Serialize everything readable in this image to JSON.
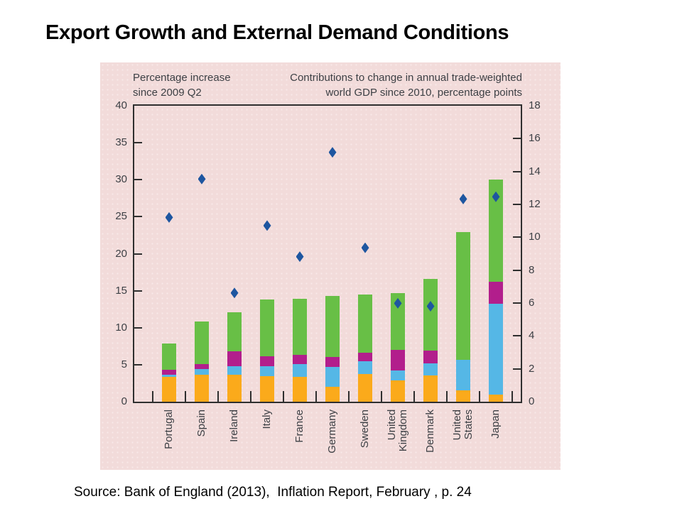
{
  "page": {
    "title": "Export Growth and External Demand Conditions",
    "source_line": "Source: Bank of England (2013),  Inflation Report, February , p. 24"
  },
  "chart_data": {
    "type": "bar",
    "subtype": "stacked-bars-with-diamond-markers",
    "categories": [
      "Portugal",
      "Spain",
      "Ireland",
      "Italy",
      "France",
      "Germany",
      "Sweden",
      "United\nKingdom",
      "Denmark",
      "United\nStates",
      "Japan"
    ],
    "bar_value_axis": "right",
    "series": [
      {
        "name": "segment-orange",
        "color": "#fbaa1b",
        "values": [
          1.5,
          1.65,
          1.65,
          1.55,
          1.5,
          0.9,
          1.7,
          1.3,
          1.6,
          0.7,
          0.45
        ]
      },
      {
        "name": "segment-blue",
        "color": "#55b7e6",
        "values": [
          0.15,
          0.35,
          0.5,
          0.6,
          0.8,
          1.2,
          0.75,
          0.6,
          0.75,
          1.85,
          5.5
        ]
      },
      {
        "name": "segment-magenta",
        "color": "#b21e8c",
        "values": [
          0.3,
          0.3,
          0.9,
          0.6,
          0.55,
          0.6,
          0.55,
          1.25,
          0.75,
          0,
          1.35
        ]
      },
      {
        "name": "segment-green",
        "color": "#68bf46",
        "values": [
          1.6,
          2.6,
          2.4,
          3.45,
          3.4,
          3.75,
          3.5,
          3.45,
          4.35,
          7.75,
          6.2
        ]
      }
    ],
    "markers": {
      "name": "export-growth-diamond",
      "shape": "diamond",
      "color": "#1e56a0",
      "value_axis": "left",
      "values": [
        24.9,
        30.1,
        14.7,
        23.8,
        19.6,
        33.7,
        20.8,
        13.3,
        12.9,
        27.4,
        27.7
      ]
    },
    "left_axis": {
      "header": "Percentage increase\nsince 2009 Q2",
      "min": 0,
      "max": 40,
      "tick_step": 5,
      "ticks": [
        0,
        5,
        10,
        15,
        20,
        25,
        30,
        35,
        40
      ]
    },
    "right_axis": {
      "header": "Contributions to change in annual trade-weighted\nworld GDP since 2010, percentage points",
      "min": 0,
      "max": 18,
      "tick_step": 2,
      "ticks": [
        0,
        2,
        4,
        6,
        8,
        10,
        12,
        14,
        16,
        18
      ]
    },
    "legend": "none-visible",
    "grid": "off",
    "colors": {
      "panel_background": "#f2dbda",
      "frame": "#2f2f2f",
      "axis_text": "#3d4045",
      "diamond": "#1e56a0"
    }
  }
}
